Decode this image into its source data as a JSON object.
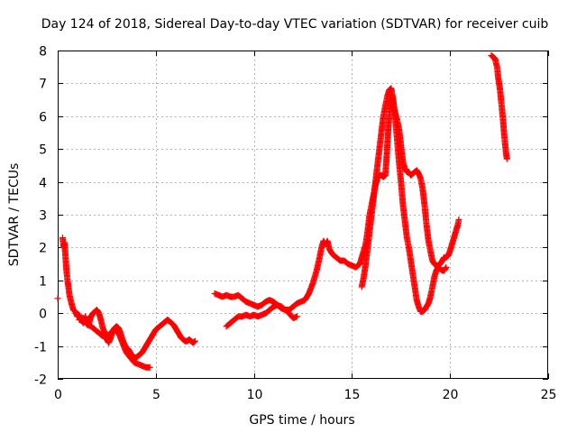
{
  "chart_data": {
    "type": "scatter",
    "title": "Day 124 of 2018, Sidereal Day-to-day VTEC variation (SDTVAR) for receiver cuib",
    "xlabel": "GPS time / hours",
    "ylabel": "SDTVAR / TECUs",
    "xlim": [
      0,
      25
    ],
    "ylim": [
      -2,
      8
    ],
    "x_ticks": [
      "0",
      "5",
      "10",
      "15",
      "20",
      "25"
    ],
    "y_ticks": [
      "-2",
      "-1",
      "0",
      "1",
      "2",
      "3",
      "4",
      "5",
      "6",
      "7",
      "8"
    ],
    "grid": true,
    "marker": "+",
    "marker_color": "#ff0000",
    "series": [
      {
        "name": "SDTVAR",
        "segments": [
          [
            [
              0.0,
              0.45
            ]
          ],
          [
            [
              0.25,
              2.3
            ],
            [
              0.3,
              2.0
            ],
            [
              0.35,
              2.15
            ],
            [
              0.4,
              1.7
            ],
            [
              0.45,
              1.3
            ],
            [
              0.5,
              1.0
            ],
            [
              0.55,
              0.8
            ],
            [
              0.6,
              0.55
            ],
            [
              0.7,
              0.3
            ],
            [
              0.8,
              0.1
            ],
            [
              0.9,
              0.05
            ],
            [
              1.0,
              -0.1
            ],
            [
              1.1,
              -0.05
            ],
            [
              1.2,
              -0.2
            ],
            [
              1.3,
              -0.3
            ],
            [
              1.4,
              -0.1
            ],
            [
              1.5,
              -0.25
            ],
            [
              1.6,
              -0.3
            ],
            [
              1.7,
              -0.1
            ],
            [
              1.8,
              0.0
            ],
            [
              1.9,
              0.05
            ],
            [
              2.0,
              0.1
            ],
            [
              2.1,
              0.0
            ],
            [
              2.2,
              -0.2
            ],
            [
              2.3,
              -0.45
            ],
            [
              2.4,
              -0.6
            ],
            [
              2.5,
              -0.8
            ],
            [
              2.6,
              -0.9
            ],
            [
              2.7,
              -0.75
            ],
            [
              2.8,
              -0.55
            ],
            [
              2.9,
              -0.45
            ],
            [
              3.0,
              -0.4
            ],
            [
              3.1,
              -0.45
            ],
            [
              3.2,
              -0.6
            ],
            [
              3.3,
              -0.8
            ],
            [
              3.4,
              -0.95
            ],
            [
              3.5,
              -1.05
            ],
            [
              3.6,
              -1.1
            ],
            [
              3.7,
              -1.2
            ],
            [
              3.8,
              -1.3
            ],
            [
              3.9,
              -1.35
            ],
            [
              4.0,
              -1.35
            ],
            [
              4.1,
              -1.3
            ],
            [
              4.2,
              -1.25
            ],
            [
              4.3,
              -1.2
            ],
            [
              4.4,
              -1.1
            ],
            [
              4.5,
              -1.0
            ],
            [
              4.6,
              -0.9
            ],
            [
              4.7,
              -0.8
            ],
            [
              4.8,
              -0.7
            ],
            [
              4.9,
              -0.6
            ],
            [
              5.0,
              -0.5
            ],
            [
              5.1,
              -0.45
            ],
            [
              5.2,
              -0.4
            ],
            [
              5.3,
              -0.35
            ],
            [
              5.4,
              -0.3
            ],
            [
              5.5,
              -0.25
            ],
            [
              5.6,
              -0.2
            ],
            [
              5.7,
              -0.25
            ],
            [
              5.8,
              -0.3
            ],
            [
              5.9,
              -0.35
            ],
            [
              6.0,
              -0.45
            ],
            [
              6.1,
              -0.55
            ],
            [
              6.2,
              -0.65
            ],
            [
              6.3,
              -0.75
            ],
            [
              6.4,
              -0.8
            ],
            [
              6.5,
              -0.85
            ],
            [
              6.6,
              -0.85
            ],
            [
              6.7,
              -0.8
            ],
            [
              6.8,
              -0.85
            ],
            [
              6.9,
              -0.9
            ],
            [
              7.0,
              -0.85
            ]
          ],
          [
            [
              1.1,
              -0.2
            ],
            [
              1.3,
              -0.15
            ],
            [
              1.5,
              -0.35
            ],
            [
              1.7,
              -0.4
            ],
            [
              1.9,
              -0.5
            ],
            [
              2.1,
              -0.6
            ],
            [
              2.3,
              -0.7
            ],
            [
              2.5,
              -0.7
            ],
            [
              2.7,
              -0.6
            ],
            [
              2.9,
              -0.5
            ],
            [
              3.1,
              -0.6
            ],
            [
              3.3,
              -0.9
            ],
            [
              3.5,
              -1.2
            ],
            [
              3.7,
              -1.35
            ],
            [
              3.9,
              -1.5
            ],
            [
              4.1,
              -1.55
            ],
            [
              4.3,
              -1.6
            ],
            [
              4.5,
              -1.65
            ],
            [
              4.7,
              -1.65
            ]
          ],
          [
            [
              8.0,
              0.6
            ],
            [
              8.2,
              0.55
            ],
            [
              8.4,
              0.5
            ],
            [
              8.6,
              0.55
            ],
            [
              8.8,
              0.5
            ],
            [
              9.0,
              0.5
            ],
            [
              9.2,
              0.55
            ],
            [
              9.4,
              0.45
            ],
            [
              9.6,
              0.35
            ],
            [
              9.8,
              0.3
            ],
            [
              10.0,
              0.25
            ],
            [
              10.2,
              0.2
            ],
            [
              10.4,
              0.25
            ],
            [
              10.6,
              0.35
            ],
            [
              10.8,
              0.4
            ],
            [
              11.0,
              0.35
            ],
            [
              11.2,
              0.25
            ],
            [
              11.4,
              0.15
            ],
            [
              11.6,
              0.1
            ],
            [
              11.8,
              0.1
            ],
            [
              12.0,
              0.2
            ],
            [
              12.2,
              0.3
            ],
            [
              12.4,
              0.35
            ],
            [
              12.6,
              0.4
            ],
            [
              12.8,
              0.6
            ],
            [
              13.0,
              0.9
            ],
            [
              13.2,
              1.3
            ],
            [
              13.35,
              1.7
            ],
            [
              13.45,
              2.0
            ],
            [
              13.55,
              2.2
            ],
            [
              13.65,
              2.1
            ],
            [
              13.75,
              2.2
            ],
            [
              13.85,
              1.95
            ],
            [
              14.0,
              1.8
            ],
            [
              14.2,
              1.7
            ],
            [
              14.4,
              1.6
            ],
            [
              14.6,
              1.6
            ],
            [
              14.8,
              1.5
            ],
            [
              15.0,
              1.45
            ],
            [
              15.2,
              1.4
            ],
            [
              15.4,
              1.5
            ],
            [
              15.5,
              1.7
            ],
            [
              15.6,
              1.9
            ],
            [
              15.7,
              2.1
            ],
            [
              15.8,
              2.5
            ],
            [
              15.9,
              3.0
            ],
            [
              16.0,
              3.3
            ],
            [
              16.1,
              3.6
            ],
            [
              16.2,
              3.9
            ],
            [
              16.3,
              4.1
            ],
            [
              16.4,
              4.2
            ],
            [
              16.5,
              4.2
            ],
            [
              16.6,
              4.15
            ],
            [
              16.7,
              4.2
            ],
            [
              16.75,
              4.6
            ],
            [
              16.8,
              5.1
            ],
            [
              16.85,
              5.6
            ],
            [
              16.9,
              6.0
            ],
            [
              16.95,
              6.3
            ],
            [
              17.0,
              6.5
            ],
            [
              17.05,
              6.6
            ],
            [
              17.1,
              6.4
            ],
            [
              17.2,
              6.1
            ],
            [
              17.3,
              5.9
            ],
            [
              17.4,
              5.6
            ],
            [
              17.5,
              5.1
            ],
            [
              17.6,
              4.6
            ],
            [
              17.7,
              4.4
            ],
            [
              17.8,
              4.3
            ],
            [
              17.9,
              4.3
            ],
            [
              18.0,
              4.2
            ],
            [
              18.1,
              4.25
            ],
            [
              18.2,
              4.3
            ],
            [
              18.3,
              4.35
            ],
            [
              18.4,
              4.25
            ],
            [
              18.5,
              4.1
            ],
            [
              18.6,
              3.8
            ],
            [
              18.7,
              3.3
            ],
            [
              18.8,
              2.7
            ],
            [
              18.9,
              2.2
            ],
            [
              19.0,
              1.9
            ],
            [
              19.1,
              1.6
            ],
            [
              19.2,
              1.5
            ],
            [
              19.3,
              1.45
            ],
            [
              19.4,
              1.45
            ],
            [
              19.5,
              1.5
            ],
            [
              19.6,
              1.6
            ],
            [
              19.7,
              1.7
            ],
            [
              19.8,
              1.7
            ],
            [
              19.9,
              1.75
            ],
            [
              20.0,
              1.9
            ],
            [
              20.1,
              2.1
            ],
            [
              20.2,
              2.3
            ],
            [
              20.3,
              2.5
            ],
            [
              20.4,
              2.7
            ],
            [
              20.45,
              2.85
            ]
          ],
          [
            [
              8.6,
              -0.4
            ],
            [
              8.8,
              -0.3
            ],
            [
              9.0,
              -0.2
            ],
            [
              9.2,
              -0.1
            ],
            [
              9.4,
              -0.1
            ],
            [
              9.6,
              -0.05
            ],
            [
              9.8,
              -0.1
            ],
            [
              10.0,
              -0.05
            ],
            [
              10.2,
              -0.1
            ],
            [
              10.4,
              -0.05
            ],
            [
              10.6,
              0.0
            ],
            [
              10.8,
              0.1
            ],
            [
              11.0,
              0.2
            ],
            [
              11.2,
              0.25
            ],
            [
              11.4,
              0.2
            ],
            [
              11.6,
              0.1
            ],
            [
              11.8,
              0.0
            ],
            [
              12.0,
              -0.15
            ],
            [
              12.2,
              -0.1
            ]
          ],
          [
            [
              15.5,
              0.8
            ],
            [
              15.6,
              1.1
            ],
            [
              15.7,
              1.5
            ],
            [
              15.8,
              2.0
            ],
            [
              15.9,
              2.5
            ],
            [
              16.0,
              3.0
            ],
            [
              16.1,
              3.5
            ],
            [
              16.2,
              4.0
            ],
            [
              16.3,
              4.5
            ],
            [
              16.4,
              5.0
            ],
            [
              16.5,
              5.5
            ],
            [
              16.6,
              6.0
            ],
            [
              16.7,
              6.3
            ],
            [
              16.8,
              6.6
            ],
            [
              16.9,
              6.8
            ],
            [
              17.0,
              6.85
            ],
            [
              17.1,
              6.5
            ],
            [
              17.2,
              6.0
            ],
            [
              17.3,
              5.3
            ],
            [
              17.4,
              4.6
            ],
            [
              17.5,
              4.0
            ],
            [
              17.6,
              3.3
            ],
            [
              17.7,
              2.8
            ],
            [
              17.8,
              2.3
            ],
            [
              17.9,
              2.0
            ],
            [
              18.0,
              1.6
            ],
            [
              18.1,
              1.2
            ],
            [
              18.2,
              0.8
            ],
            [
              18.3,
              0.4
            ],
            [
              18.4,
              0.2
            ],
            [
              18.5,
              0.05
            ],
            [
              18.6,
              0.05
            ],
            [
              18.7,
              0.1
            ],
            [
              18.8,
              0.2
            ],
            [
              18.9,
              0.3
            ],
            [
              19.0,
              0.5
            ],
            [
              19.1,
              0.8
            ],
            [
              19.2,
              1.1
            ],
            [
              19.3,
              1.3
            ],
            [
              19.4,
              1.4
            ],
            [
              19.5,
              1.35
            ],
            [
              19.6,
              1.3
            ],
            [
              19.7,
              1.3
            ],
            [
              19.8,
              1.4
            ]
          ],
          [
            [
              22.1,
              7.85
            ],
            [
              22.2,
              7.8
            ],
            [
              22.3,
              7.75
            ],
            [
              22.35,
              7.6
            ],
            [
              22.4,
              7.5
            ],
            [
              22.45,
              7.2
            ],
            [
              22.5,
              7.0
            ],
            [
              22.55,
              6.8
            ],
            [
              22.6,
              6.5
            ],
            [
              22.65,
              6.2
            ],
            [
              22.7,
              5.9
            ],
            [
              22.75,
              5.5
            ],
            [
              22.8,
              5.2
            ],
            [
              22.85,
              4.9
            ],
            [
              22.9,
              4.7
            ]
          ]
        ]
      }
    ]
  }
}
